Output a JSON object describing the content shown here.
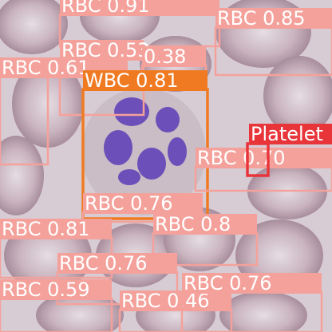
{
  "detections": [
    {
      "label": "RBC 0.91"
    },
    {
      "label": "RBC 0.85"
    },
    {
      "label": "RBC 0.53"
    },
    {
      "label": "RBC 0.61"
    },
    {
      "label": "0.38"
    },
    {
      "label": "WBC 0.81"
    },
    {
      "label": "RBC 0.70"
    },
    {
      "label": "Platelet"
    },
    {
      "label": "RBC 0.76"
    },
    {
      "label": "RBC 0.81"
    },
    {
      "label": "RBC 0.8"
    },
    {
      "label": "RBC 0.76"
    },
    {
      "label": "RBC 0.59"
    },
    {
      "label": "RBC 0.46"
    },
    {
      "label": "RBC 0.76"
    }
  ]
}
